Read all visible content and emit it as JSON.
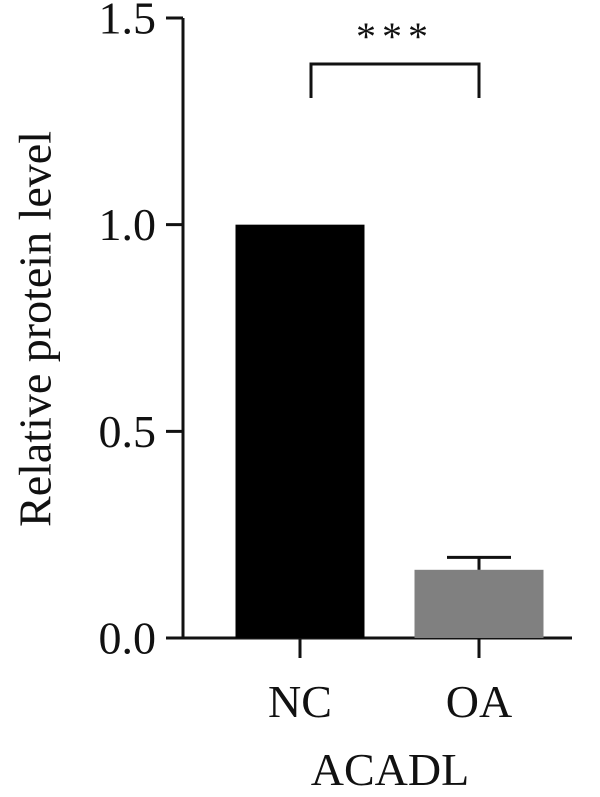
{
  "chart_data": {
    "type": "bar",
    "categories": [
      "NC",
      "OA"
    ],
    "values": [
      1.0,
      0.165
    ],
    "errors": [
      0.0,
      0.03
    ],
    "bar_colors": [
      "#000000",
      "#808080"
    ],
    "ylabel": "Relative protein level",
    "xlabel": "ACADL",
    "ylim": [
      0,
      1.5
    ],
    "yticks": [
      0.0,
      0.5,
      1.0,
      1.5
    ],
    "ytick_labels": [
      "0.0",
      "0.5",
      "1.0",
      "1.5"
    ],
    "significance": {
      "between": [
        "NC",
        "OA"
      ],
      "label": "***"
    },
    "grid": false
  }
}
